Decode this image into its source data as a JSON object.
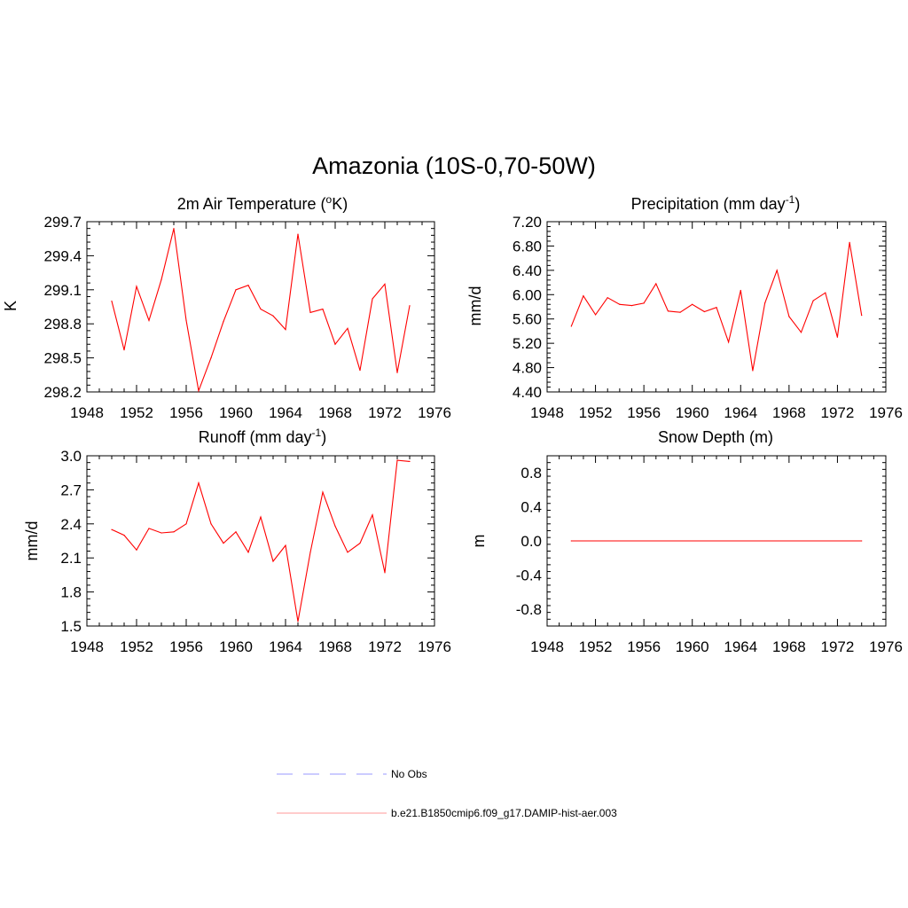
{
  "title": "Amazonia (10S-0,70-50W)",
  "chart_data": [
    {
      "type": "line",
      "title": "2m Air Temperature",
      "title_unit_prefix": "(",
      "title_unit_sup": "o",
      "title_unit_suffix": "K)",
      "ylabel": "K",
      "xlim": [
        1948,
        1976
      ],
      "ylim": [
        298.2,
        299.7
      ],
      "x_ticks": [
        "1948",
        "1952",
        "1956",
        "1960",
        "1964",
        "1968",
        "1972",
        "1976"
      ],
      "y_ticks": [
        "298.2",
        "298.5",
        "298.8",
        "299.1",
        "299.4",
        "299.7"
      ],
      "series": [
        {
          "color": "#ff0000",
          "x": [
            1950,
            1951,
            1952,
            1953,
            1954,
            1955,
            1956,
            1957,
            1958,
            1959,
            1960,
            1961,
            1962,
            1963,
            1964,
            1965,
            1966,
            1967,
            1968,
            1969,
            1970,
            1971,
            1972,
            1973,
            1974
          ],
          "y": [
            299.0,
            298.57,
            299.13,
            298.83,
            299.19,
            299.64,
            298.83,
            298.21,
            298.5,
            298.82,
            299.1,
            299.14,
            298.93,
            298.87,
            298.75,
            299.59,
            298.9,
            298.93,
            298.62,
            298.76,
            298.39,
            299.02,
            299.15,
            298.37,
            298.96
          ]
        }
      ]
    },
    {
      "type": "line",
      "title": "Precipitation (mm day",
      "title_sup": "-1",
      "title_suffix": ")",
      "ylabel": "mm/d",
      "xlim": [
        1948,
        1976
      ],
      "ylim": [
        4.4,
        7.2
      ],
      "x_ticks": [
        "1948",
        "1952",
        "1956",
        "1960",
        "1964",
        "1968",
        "1972",
        "1976"
      ],
      "y_ticks": [
        "4.40",
        "4.80",
        "5.20",
        "5.60",
        "6.00",
        "6.40",
        "6.80",
        "7.20"
      ],
      "series": [
        {
          "color": "#ff0000",
          "x": [
            1950,
            1951,
            1952,
            1953,
            1954,
            1955,
            1956,
            1957,
            1958,
            1959,
            1960,
            1961,
            1962,
            1963,
            1964,
            1965,
            1966,
            1967,
            1968,
            1969,
            1970,
            1971,
            1972,
            1973,
            1974
          ],
          "y": [
            5.48,
            5.98,
            5.67,
            5.95,
            5.84,
            5.82,
            5.86,
            6.18,
            5.73,
            5.71,
            5.84,
            5.72,
            5.79,
            5.22,
            6.07,
            4.75,
            5.86,
            6.4,
            5.64,
            5.38,
            5.9,
            6.03,
            5.3,
            6.86,
            5.66
          ]
        }
      ]
    },
    {
      "type": "line",
      "title": "Runoff (mm day",
      "title_sup": "-1",
      "title_suffix": ")",
      "ylabel": "mm/d",
      "xlim": [
        1948,
        1976
      ],
      "ylim": [
        1.5,
        3.0
      ],
      "x_ticks": [
        "1948",
        "1952",
        "1956",
        "1960",
        "1964",
        "1968",
        "1972",
        "1976"
      ],
      "y_ticks": [
        "1.5",
        "1.8",
        "2.1",
        "2.4",
        "2.7",
        "3.0"
      ],
      "series": [
        {
          "color": "#ff0000",
          "x": [
            1950,
            1951,
            1952,
            1953,
            1954,
            1955,
            1956,
            1957,
            1958,
            1959,
            1960,
            1961,
            1962,
            1963,
            1964,
            1965,
            1966,
            1967,
            1968,
            1969,
            1970,
            1971,
            1972,
            1973,
            1974
          ],
          "y": [
            2.35,
            2.3,
            2.17,
            2.36,
            2.32,
            2.33,
            2.4,
            2.76,
            2.4,
            2.23,
            2.33,
            2.15,
            2.46,
            2.07,
            2.21,
            1.54,
            2.15,
            2.68,
            2.38,
            2.15,
            2.23,
            2.48,
            1.97,
            2.96,
            2.95
          ]
        }
      ]
    },
    {
      "type": "line",
      "title": "Snow Depth (m)",
      "ylabel": "m",
      "xlim": [
        1948,
        1976
      ],
      "ylim": [
        -1.0,
        1.0
      ],
      "x_ticks": [
        "1948",
        "1952",
        "1956",
        "1960",
        "1964",
        "1968",
        "1972",
        "1976"
      ],
      "y_ticks": [
        "-0.8",
        "-0.4",
        "0.0",
        "0.4",
        "0.8"
      ],
      "y_tick_values": [
        -0.8,
        -0.4,
        0.0,
        0.4,
        0.8
      ],
      "series": [
        {
          "color": "#ff0000",
          "x": [
            1950,
            1974
          ],
          "y": [
            0.0,
            0.0
          ]
        }
      ]
    }
  ],
  "legend": [
    {
      "label": "No Obs",
      "color": "#9999ff",
      "style": "dashed"
    },
    {
      "label": "b.e21.B1850cmip6.f09_g17.DAMIP-hist-aer.003",
      "color": "#ff9999",
      "style": "solid"
    }
  ]
}
